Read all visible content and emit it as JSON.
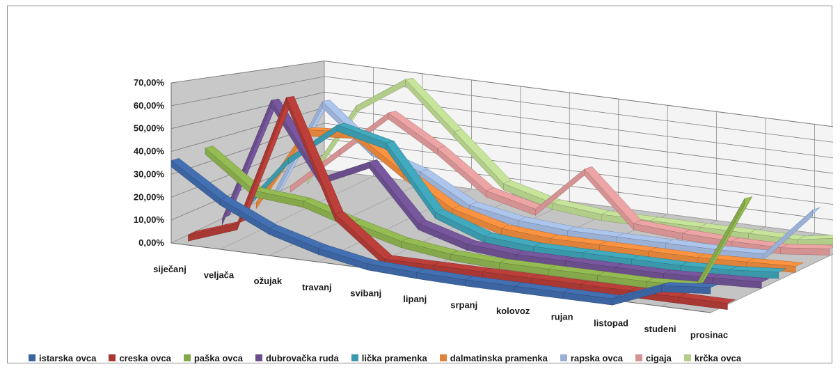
{
  "chart_data": {
    "type": "line",
    "style": "3d-ribbon",
    "title": "",
    "xlabel": "",
    "ylabel": "",
    "categories": [
      "siječanj",
      "veljača",
      "ožujak",
      "travanj",
      "svibanj",
      "lipanj",
      "srpanj",
      "kolovoz",
      "rujan",
      "listopad",
      "studeni",
      "prosinac"
    ],
    "ylim": [
      0,
      70
    ],
    "y_ticks": [
      "0,00%",
      "10,00%",
      "20,00%",
      "30,00%",
      "40,00%",
      "50,00%",
      "60,00%",
      "70,00%"
    ],
    "grid": true,
    "legend_position": "bottom",
    "series": [
      {
        "name": "istarska ovca",
        "color": "#3c64a0",
        "values": [
          36,
          22,
          12,
          6,
          2,
          1,
          0.5,
          0.5,
          0.5,
          0.5,
          9,
          11
        ]
      },
      {
        "name": "creska ovca",
        "color": "#a83834",
        "values": [
          0,
          8,
          68,
          18,
          0.5,
          0.5,
          0.5,
          0.5,
          0.5,
          0.5,
          0.5,
          0.5
        ]
      },
      {
        "name": "paška ovca",
        "color": "#84a84a",
        "values": [
          37,
          20,
          18,
          11,
          5,
          2,
          1,
          1,
          1,
          1,
          2,
          46
        ]
      },
      {
        "name": "dubrovačka ruda",
        "color": "#6a4e8c",
        "values": [
          0,
          61,
          26,
          37,
          10,
          3,
          1,
          1,
          1,
          1,
          2,
          3
        ]
      },
      {
        "name": "lička pramenka",
        "color": "#3a98aa",
        "values": [
          0,
          30,
          50,
          44,
          12,
          3,
          1,
          1,
          1,
          1,
          2,
          4
        ]
      },
      {
        "name": "dalmatinska pramenka",
        "color": "#e0833a",
        "values": [
          0,
          42,
          44,
          26,
          10,
          3,
          1,
          1,
          1,
          1,
          2,
          3
        ]
      },
      {
        "name": "rapska ovca",
        "color": "#9ab0d4",
        "values": [
          0,
          55,
          32,
          23,
          8,
          3,
          1,
          1,
          1,
          1,
          2,
          30
        ]
      },
      {
        "name": "cigaja",
        "color": "#d49292",
        "values": [
          0,
          25,
          50,
          33,
          12,
          5,
          32,
          4,
          2,
          1,
          1,
          4
        ]
      },
      {
        "name": "krčka ovca",
        "color": "#b2cc8a",
        "values": [
          0,
          48,
          68,
          40,
          12,
          4,
          1,
          1,
          1,
          1,
          1,
          6
        ]
      }
    ]
  }
}
